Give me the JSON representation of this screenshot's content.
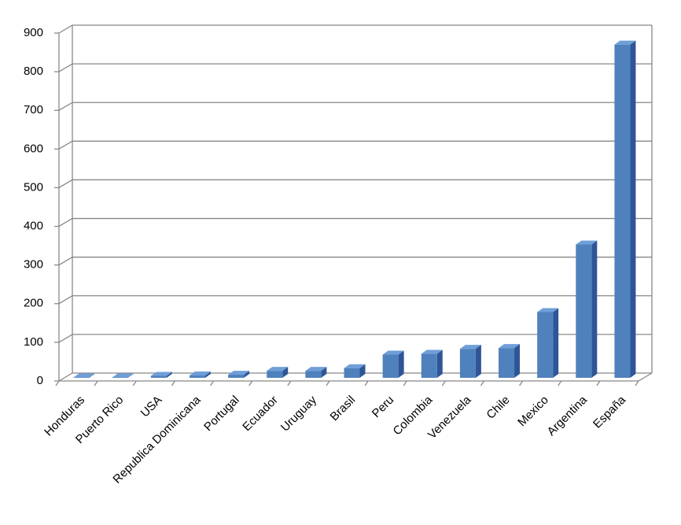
{
  "chart_data": {
    "type": "bar3d",
    "categories": [
      "Honduras",
      "Puerto Rico",
      "USA",
      "Republica Dominicana",
      "Portugal",
      "Ecuador",
      "Uruguay",
      "Brasil",
      "Peru",
      "Colombia",
      "Venezuela",
      "Chile",
      "Mexico",
      "Argentina",
      "España"
    ],
    "values": [
      1,
      1,
      5,
      6,
      8,
      18,
      18,
      25,
      60,
      62,
      75,
      77,
      170,
      345,
      862
    ],
    "color": "#4f81bd",
    "ylim": [
      0,
      900
    ],
    "yticks": [
      0,
      100,
      200,
      300,
      400,
      500,
      600,
      700,
      800,
      900
    ],
    "grid": true
  }
}
